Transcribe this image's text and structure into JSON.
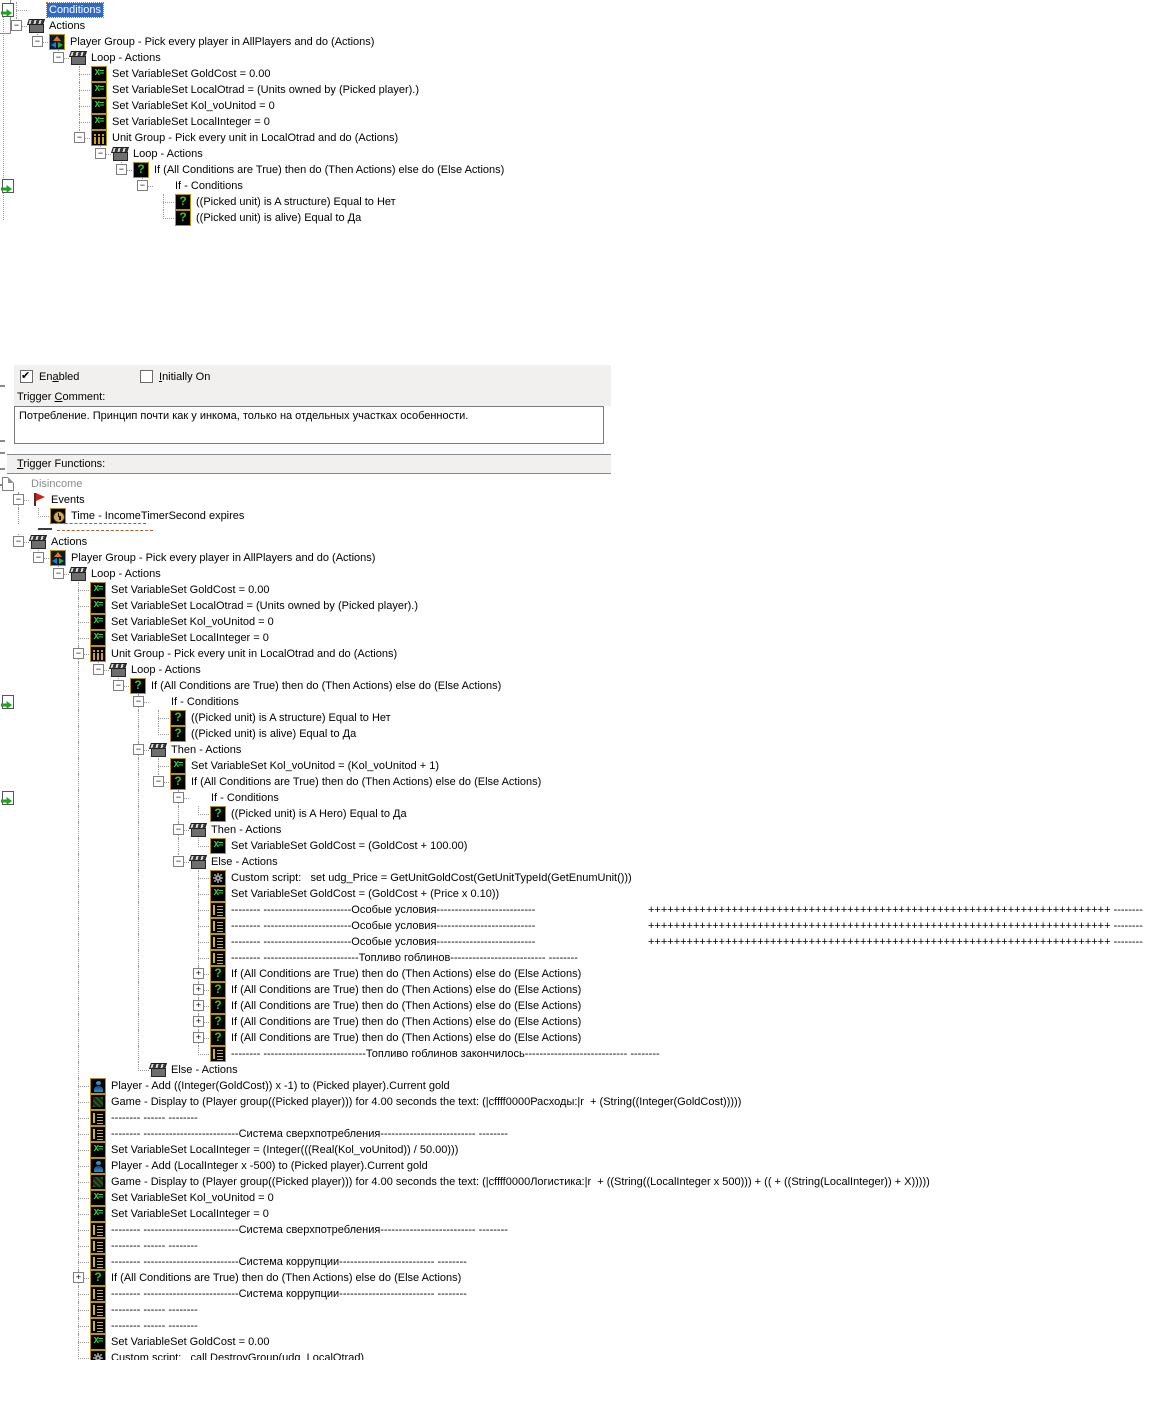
{
  "colors": {
    "selection": "#316AC5",
    "icon_border": "#b8940a",
    "variable_green": "#3fd43f",
    "flag_red": "#cc2020"
  },
  "editor": {
    "enabled": {
      "pre": "En",
      "key": "a",
      "post": "bled",
      "checked": true
    },
    "initially_on": {
      "pre": "",
      "key": "I",
      "post": "nitially On",
      "checked": false
    },
    "comment_label": {
      "pre": "Trigger ",
      "key": "C",
      "post": "omment:"
    },
    "comment_text": "Потребление. Принцип почти как у инкома, только на отдельных участках особенности.",
    "functions_label": {
      "pre": "",
      "key": "T",
      "post": "rigger Functions:"
    }
  },
  "top_tree": {
    "rows": [
      {
        "d": 1,
        "icon": "ifcond",
        "label": "Conditions",
        "sel": true
      },
      {
        "d": 1,
        "icon": "clapper",
        "exp": "minus",
        "label": "Actions"
      },
      {
        "d": 2,
        "icon": "playergroup",
        "exp": "minus",
        "label": "Player Group - Pick every player in AllPlayers and do (Actions)"
      },
      {
        "d": 3,
        "icon": "clapper",
        "exp": "minus",
        "label": "Loop - Actions"
      },
      {
        "d": 4,
        "icon": "setvar",
        "label": "Set VariableSet GoldCost = 0.00"
      },
      {
        "d": 4,
        "icon": "setvar",
        "label": "Set VariableSet LocalOtrad = (Units owned by (Picked player).)"
      },
      {
        "d": 4,
        "icon": "setvar",
        "label": "Set VariableSet Kol_voUnitod = 0"
      },
      {
        "d": 4,
        "icon": "setvar",
        "label": "Set VariableSet LocalInteger = 0"
      },
      {
        "d": 4,
        "icon": "unitgroup",
        "exp": "minus",
        "label": "Unit Group - Pick every unit in LocalOtrad and do (Actions)"
      },
      {
        "d": 5,
        "icon": "clapper",
        "exp": "minus",
        "label": "Loop - Actions"
      },
      {
        "d": 6,
        "icon": "ifelse",
        "exp": "minus",
        "label": "If (All Conditions are True) then do (Then Actions) else do (Else Actions)"
      },
      {
        "d": 7,
        "icon": "ifcond",
        "exp": "minus",
        "label": "If - Conditions"
      },
      {
        "d": 8,
        "icon": "cond",
        "label": "((Picked unit) is A structure) Equal to Нет"
      },
      {
        "d": 8,
        "icon": "cond",
        "label": "((Picked unit) is alive) Equal to Да"
      }
    ]
  },
  "bottom_tree": {
    "rows": [
      {
        "d": 0,
        "icon": "trigger",
        "label": "Disincome",
        "gray": true
      },
      {
        "d": 1,
        "icon": "flag",
        "exp": "minus",
        "label": "Events"
      },
      {
        "d": 2,
        "icon": "clock",
        "label": "Time - IncomeTimerSecond expires",
        "focus": true
      },
      {
        "type": "ghost"
      },
      {
        "d": 1,
        "icon": "clapper",
        "exp": "minus",
        "label": "Actions"
      },
      {
        "d": 2,
        "icon": "playergroup",
        "exp": "minus",
        "label": "Player Group - Pick every player in AllPlayers and do (Actions)"
      },
      {
        "d": 3,
        "icon": "clapper",
        "exp": "minus",
        "label": "Loop - Actions"
      },
      {
        "d": 4,
        "icon": "setvar",
        "label": "Set VariableSet GoldCost = 0.00"
      },
      {
        "d": 4,
        "icon": "setvar",
        "label": "Set VariableSet LocalOtrad = (Units owned by (Picked player).)"
      },
      {
        "d": 4,
        "icon": "setvar",
        "label": "Set VariableSet Kol_voUnitod = 0"
      },
      {
        "d": 4,
        "icon": "setvar",
        "label": "Set VariableSet LocalInteger = 0"
      },
      {
        "d": 4,
        "icon": "unitgroup",
        "exp": "minus",
        "label": "Unit Group - Pick every unit in LocalOtrad and do (Actions)"
      },
      {
        "d": 5,
        "icon": "clapper",
        "exp": "minus",
        "label": "Loop - Actions"
      },
      {
        "d": 6,
        "icon": "ifelse",
        "exp": "minus",
        "label": "If (All Conditions are True) then do (Then Actions) else do (Else Actions)"
      },
      {
        "d": 7,
        "icon": "ifcond",
        "exp": "minus",
        "label": "If - Conditions"
      },
      {
        "d": 8,
        "icon": "cond",
        "label": "((Picked unit) is A structure) Equal to Нет"
      },
      {
        "d": 8,
        "icon": "cond",
        "label": "((Picked unit) is alive) Equal to Да"
      },
      {
        "d": 7,
        "icon": "clapper",
        "exp": "minus",
        "label": "Then - Actions"
      },
      {
        "d": 8,
        "icon": "setvar",
        "label": "Set VariableSet Kol_voUnitod = (Kol_voUnitod + 1)"
      },
      {
        "d": 8,
        "icon": "ifelse",
        "exp": "minus",
        "label": "If (All Conditions are True) then do (Then Actions) else do (Else Actions)"
      },
      {
        "d": 9,
        "icon": "ifcond",
        "exp": "minus",
        "label": "If - Conditions"
      },
      {
        "d": 10,
        "icon": "cond",
        "label": "((Picked unit) is A Hero) Equal to Да"
      },
      {
        "d": 9,
        "icon": "clapper",
        "exp": "minus",
        "label": "Then - Actions"
      },
      {
        "d": 10,
        "icon": "setvar",
        "label": "Set VariableSet GoldCost = (GoldCost + 100.00)"
      },
      {
        "d": 9,
        "icon": "clapper",
        "exp": "minus",
        "label": "Else - Actions"
      },
      {
        "d": 10,
        "icon": "script",
        "label": "Custom script:   set udg_Price = GetUnitGoldCost(GetUnitTypeId(GetEnumUnit()))"
      },
      {
        "d": 10,
        "icon": "setvar",
        "label": "Set VariableSet GoldCost = (GoldCost + (Price x 0.10))"
      },
      {
        "d": 10,
        "icon": "comment",
        "label": "-------- ------------------------Особые условия---------------------------",
        "tail": "++++++++++++++++++++++++++++++++++++++++++++++++++++++++++++++++++++++++ --------"
      },
      {
        "d": 10,
        "icon": "comment",
        "label": "-------- ------------------------Особые условия---------------------------",
        "tail": "++++++++++++++++++++++++++++++++++++++++++++++++++++++++++++++++++++++++ --------"
      },
      {
        "d": 10,
        "icon": "comment",
        "label": "-------- ------------------------Особые условия---------------------------",
        "tail": "++++++++++++++++++++++++++++++++++++++++++++++++++++++++++++++++++++++++ --------"
      },
      {
        "d": 10,
        "icon": "comment",
        "label": "-------- --------------------------Топливо гоблинов-------------------------- --------"
      },
      {
        "d": 10,
        "icon": "ifelse",
        "exp": "plus",
        "label": "If (All Conditions are True) then do (Then Actions) else do (Else Actions)"
      },
      {
        "d": 10,
        "icon": "ifelse",
        "exp": "plus",
        "label": "If (All Conditions are True) then do (Then Actions) else do (Else Actions)"
      },
      {
        "d": 10,
        "icon": "ifelse",
        "exp": "plus",
        "label": "If (All Conditions are True) then do (Then Actions) else do (Else Actions)"
      },
      {
        "d": 10,
        "icon": "ifelse",
        "exp": "plus",
        "label": "If (All Conditions are True) then do (Then Actions) else do (Else Actions)"
      },
      {
        "d": 10,
        "icon": "ifelse",
        "exp": "plus",
        "label": "If (All Conditions are True) then do (Then Actions) else do (Else Actions)"
      },
      {
        "d": 10,
        "icon": "comment",
        "label": "-------- ----------------------------Топливо гоблинов закончилось---------------------------- --------"
      },
      {
        "d": 7,
        "icon": "clapper",
        "label": "Else - Actions"
      },
      {
        "d": 4,
        "icon": "player",
        "label": "Player - Add ((Integer(GoldCost)) x -1) to (Picked player).Current gold"
      },
      {
        "d": 4,
        "icon": "game",
        "label": "Game - Display to (Player group((Picked player))) for 4.00 seconds the text: (|cffff0000Расходы:|r  + (String((Integer(GoldCost)))))"
      },
      {
        "d": 4,
        "icon": "comment",
        "label": "-------- ------ --------"
      },
      {
        "d": 4,
        "icon": "comment",
        "label": "-------- --------------------------Система сверхпотребления-------------------------- --------"
      },
      {
        "d": 4,
        "icon": "setvar",
        "label": "Set VariableSet LocalInteger = (Integer(((Real(Kol_voUnitod)) / 50.00)))"
      },
      {
        "d": 4,
        "icon": "player",
        "label": "Player - Add (LocalInteger x -500) to (Picked player).Current gold"
      },
      {
        "d": 4,
        "icon": "game",
        "label": "Game - Display to (Player group((Picked player))) for 4.00 seconds the text: (|cffff0000Логистика:|r  + ((String((LocalInteger x 500))) + (( + ((String(LocalInteger)) + X)))))"
      },
      {
        "d": 4,
        "icon": "setvar",
        "label": "Set VariableSet Kol_voUnitod = 0"
      },
      {
        "d": 4,
        "icon": "setvar",
        "label": "Set VariableSet LocalInteger = 0"
      },
      {
        "d": 4,
        "icon": "comment",
        "label": "-------- --------------------------Система сверхпотребления-------------------------- --------"
      },
      {
        "d": 4,
        "icon": "comment",
        "label": "-------- ------ --------"
      },
      {
        "d": 4,
        "icon": "comment",
        "label": "-------- --------------------------Система коррупции-------------------------- --------"
      },
      {
        "d": 4,
        "icon": "ifelse",
        "exp": "plus",
        "label": "If (All Conditions are True) then do (Then Actions) else do (Else Actions)"
      },
      {
        "d": 4,
        "icon": "comment",
        "label": "-------- --------------------------Система коррупции-------------------------- --------"
      },
      {
        "d": 4,
        "icon": "comment",
        "label": "-------- ------ --------"
      },
      {
        "d": 4,
        "icon": "comment",
        "label": "-------- ------ --------"
      },
      {
        "d": 4,
        "icon": "setvar",
        "label": "Set VariableSet GoldCost = 0.00"
      },
      {
        "d": 4,
        "icon": "script",
        "label": "Custom script:   call DestroyGroup(udg_LocalOtrad)"
      }
    ]
  }
}
